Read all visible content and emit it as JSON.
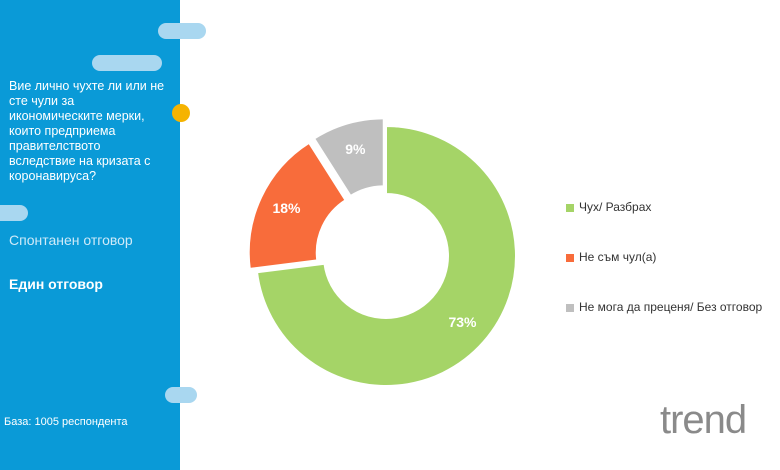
{
  "sidebar": {
    "question": "Вие лично чухте ли или не сте чули за икономическите мерки, които предприема правителството вследствие на кризата с коронавируса?",
    "note1": "Спонтанен отговор",
    "note2": "Един отговор",
    "base": "База: 1005 респондента"
  },
  "logo": "trend",
  "chart_data": {
    "type": "donut",
    "categories": [
      "Чух/ Разбрах",
      "Не съм чул(а)",
      "Не мога да преценя/ Без отговор"
    ],
    "values": [
      73,
      18,
      9
    ],
    "value_labels": [
      "73%",
      "18%",
      "9%"
    ],
    "colors": [
      "#a5d467",
      "#f86c3b",
      "#bfbfbf"
    ]
  }
}
